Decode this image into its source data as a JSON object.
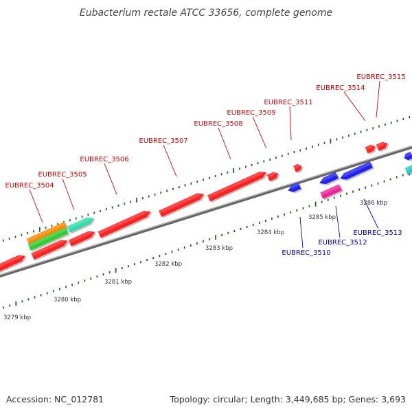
{
  "title": "Eubacterium rectale ATCC 33656, complete genome",
  "footer": {
    "accession": "Accession: NC_012781",
    "summary": "Topology: circular; Length: 3,449,685 bp; Genes: 3,693"
  },
  "colors": {
    "forward_label": "#cc0000",
    "reverse_label": "#0000aa",
    "tick": "#226622",
    "backbone": "#888888"
  },
  "position_labels": [
    "3279 kbp",
    "3280 kbp",
    "3281 kbp",
    "3282 kbp",
    "3283 kbp",
    "3284 kbp",
    "3285 kbp",
    "3286 kbp"
  ],
  "gene_labels": [
    {
      "text": "EUBREC_3504",
      "strand": "forward"
    },
    {
      "text": "EUBREC_3505",
      "strand": "forward"
    },
    {
      "text": "EUBREC_3506",
      "strand": "forward"
    },
    {
      "text": "EUBREC_3507",
      "strand": "forward"
    },
    {
      "text": "EUBREC_3508",
      "strand": "forward"
    },
    {
      "text": "EUBREC_3509",
      "strand": "forward"
    },
    {
      "text": "EUBREC_3511",
      "strand": "forward"
    },
    {
      "text": "EUBREC_3514",
      "strand": "forward"
    },
    {
      "text": "EUBREC_3515",
      "strand": "forward"
    },
    {
      "text": "EUBREC_3510",
      "strand": "reverse"
    },
    {
      "text": "EUBREC_3512",
      "strand": "reverse"
    },
    {
      "text": "EUBREC_3513",
      "strand": "reverse"
    }
  ],
  "features": [
    {
      "strand": "forward",
      "color": "#ff2222"
    },
    {
      "strand": "forward",
      "color": "#ff2222"
    },
    {
      "strand": "forward",
      "color": "#ff2222"
    },
    {
      "strand": "forward",
      "color": "#ff2222"
    },
    {
      "strand": "forward",
      "color": "#ff2222"
    },
    {
      "strand": "forward",
      "color": "#ff2222"
    },
    {
      "strand": "forward",
      "color": "#ff2222"
    },
    {
      "strand": "forward",
      "color": "#ff2222"
    },
    {
      "strand": "forward",
      "color": "#ff2222"
    },
    {
      "strand": "forward",
      "color": "#ff2222"
    },
    {
      "strand": "forward",
      "color": "#ff8800"
    },
    {
      "strand": "forward",
      "color": "#33cc33"
    },
    {
      "strand": "forward",
      "color": "#33ddaa"
    },
    {
      "strand": "reverse",
      "color": "#2222ee"
    },
    {
      "strand": "reverse",
      "color": "#2222ee"
    },
    {
      "strand": "reverse",
      "color": "#2222ee"
    },
    {
      "strand": "reverse",
      "color": "#2222ee"
    },
    {
      "strand": "reverse",
      "color": "#ee2299"
    },
    {
      "strand": "reverse",
      "color": "#22cccc"
    }
  ]
}
